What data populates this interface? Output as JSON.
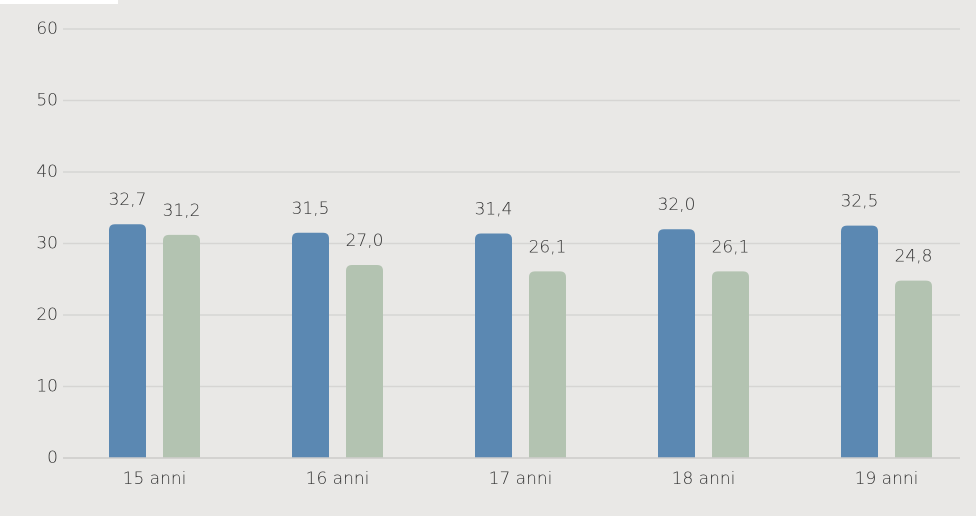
{
  "chart_data": {
    "type": "bar",
    "categories": [
      "15 anni",
      "16 anni",
      "17 anni",
      "18 anni",
      "19 anni"
    ],
    "series": [
      {
        "color": "#5b88b2",
        "values": [
          32.7,
          31.5,
          31.4,
          32.0,
          32.5
        ],
        "value_labels": [
          "32,7",
          "31,5",
          "31,4",
          "32,0",
          "32,5"
        ]
      },
      {
        "color": "#b3c3b1",
        "values": [
          31.2,
          27.0,
          26.1,
          26.1,
          24.8
        ],
        "value_labels": [
          "31,2",
          "27,0",
          "26,1",
          "26,1",
          "24,8"
        ]
      }
    ],
    "ylim": [
      0,
      60
    ],
    "yticks": [
      0,
      10,
      20,
      30,
      40,
      50,
      60
    ],
    "grid": true
  }
}
